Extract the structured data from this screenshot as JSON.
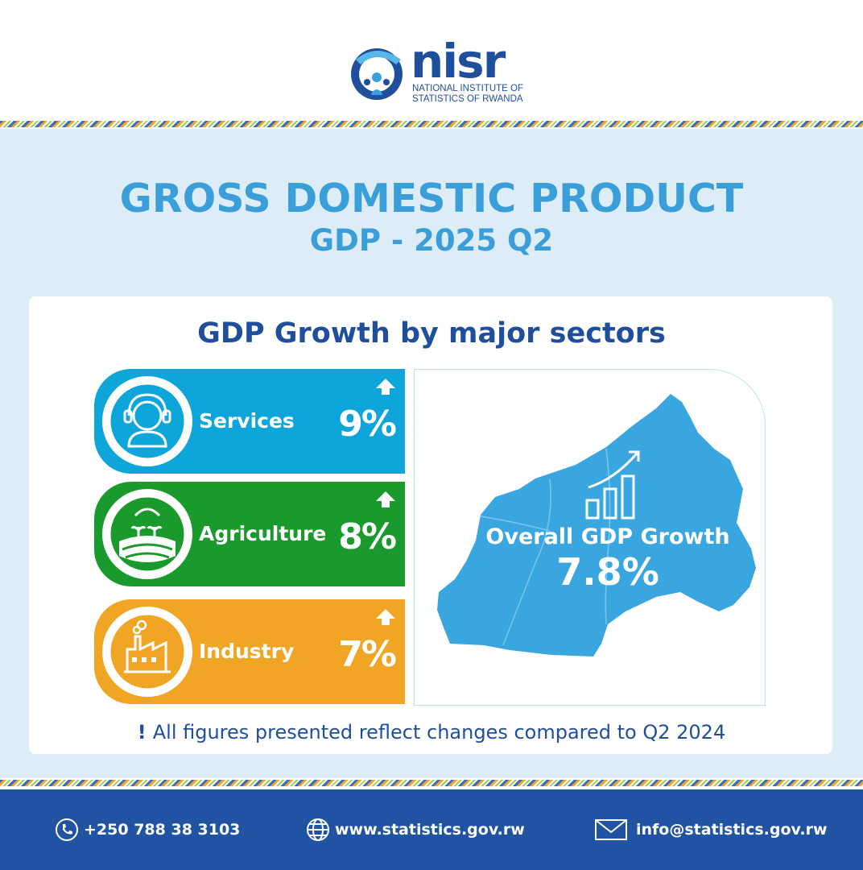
{
  "logo": {
    "wordmark": "nisr",
    "subtitle": "NATIONAL INSTITUTE OF\nSTATISTICS OF RWANDA"
  },
  "title": "GROSS DOMESTIC PRODUCT",
  "subtitle": "GDP - 2025 Q2",
  "card_title": "GDP Growth by major sectors",
  "sectors": [
    {
      "label": "Services",
      "value": "9%",
      "icon": "headset-person-icon",
      "trend": "up",
      "color": "#0ea5da"
    },
    {
      "label": "Agriculture",
      "value": "8%",
      "icon": "farm-field-icon",
      "trend": "up",
      "color": "#1a9a2c"
    },
    {
      "label": "Industry",
      "value": "7%",
      "icon": "factory-icon",
      "trend": "up",
      "color": "#f0a624"
    }
  ],
  "overall": {
    "label": "Overall GDP Growth",
    "value": "7.8%",
    "icon": "growth-chart-icon",
    "map": "rwanda-map"
  },
  "note": {
    "mark": "!",
    "text": "All figures presented reflect changes compared to Q2 2024"
  },
  "footer": {
    "phone": "+250 788 38 3103",
    "website": "www.statistics.gov.rw",
    "email": "info@statistics.gov.rw"
  },
  "colors": {
    "navy": "#1f4e9c",
    "sky": "#3a9ed9",
    "band": "#dcedf8",
    "footer": "#2153a3"
  }
}
